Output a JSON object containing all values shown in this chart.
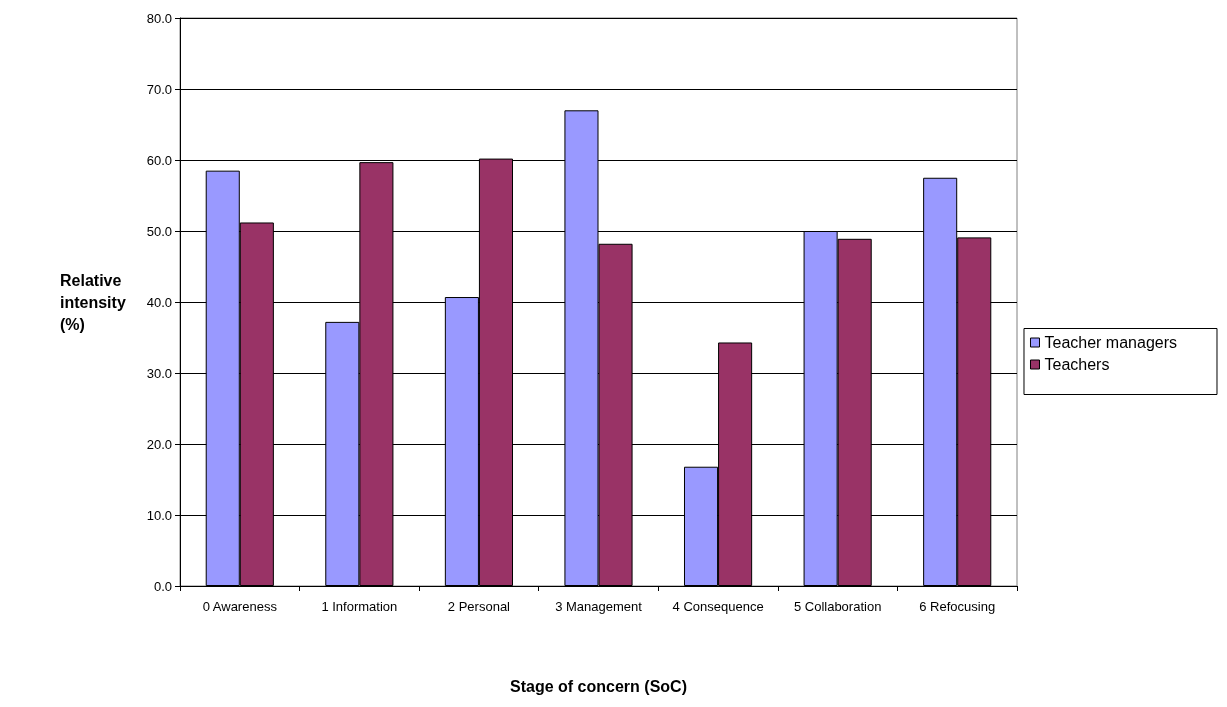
{
  "chart_data": {
    "type": "bar",
    "xlabel": "Stage of concern (SoC)",
    "ylabel": "Relative\nintensity\n(%)",
    "categories": [
      "0 Awareness",
      "1 Information",
      "2 Personal",
      "3 Management",
      "4 Consequence",
      "5 Collaboration",
      "6 Refocusing"
    ],
    "series": [
      {
        "name": "Teacher managers",
        "color": "#9999ff",
        "values": [
          58.5,
          37.2,
          40.7,
          67.0,
          16.8,
          50.0,
          57.5
        ]
      },
      {
        "name": "Teachers",
        "color": "#993366",
        "values": [
          51.2,
          59.7,
          60.2,
          48.2,
          34.3,
          48.9,
          49.1
        ]
      }
    ],
    "ylim": [
      0,
      80
    ],
    "yticks": [
      {
        "value": 0,
        "label": "0.0"
      },
      {
        "value": 10,
        "label": "10.0"
      },
      {
        "value": 20,
        "label": "20.0"
      },
      {
        "value": 30,
        "label": "30.0"
      },
      {
        "value": 40,
        "label": "40.0"
      },
      {
        "value": 50,
        "label": "50.0"
      },
      {
        "value": 60,
        "label": "60.0"
      },
      {
        "value": 70,
        "label": "70.0"
      },
      {
        "value": 80,
        "label": "80.0"
      }
    ],
    "grid": "y",
    "legend": "right"
  }
}
